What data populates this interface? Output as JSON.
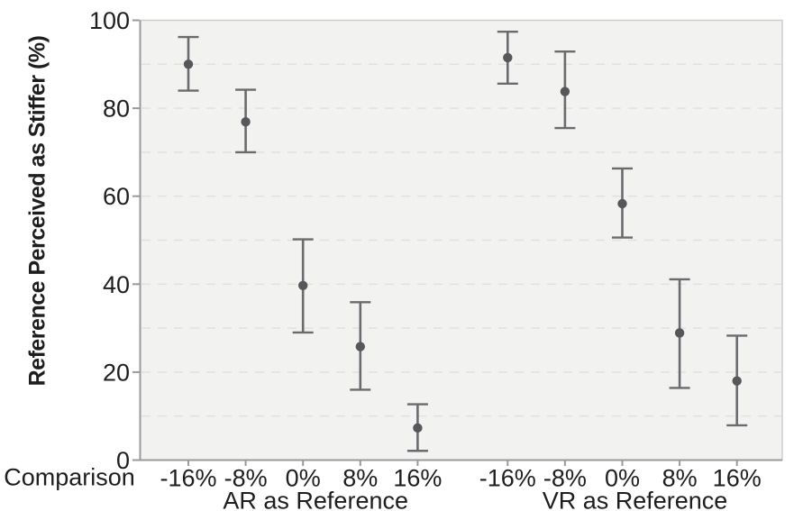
{
  "chart_data": {
    "type": "scatter",
    "title": "",
    "ylabel": "Reference Perceived as Stiffer (%)",
    "xlabel": "Comparison",
    "ylim": [
      0,
      100
    ],
    "yticks": [
      0,
      20,
      40,
      60,
      80,
      100
    ],
    "ytick_labels": [
      "0",
      "20",
      "40",
      "60",
      "80",
      "100"
    ],
    "grid": {
      "step": 10,
      "style": "dashed",
      "visible": true
    },
    "legend": "none",
    "marker": "circle-with-error-bars",
    "categories": [
      "-16%",
      "-8%",
      "0%",
      "8%",
      "16%"
    ],
    "groups": [
      {
        "label": "AR as Reference",
        "points": [
          {
            "category": "-16%",
            "mean": 90.0,
            "ci_low": 84.0,
            "ci_high": 96.2
          },
          {
            "category": "-8%",
            "mean": 76.9,
            "ci_low": 70.0,
            "ci_high": 84.2
          },
          {
            "category": "0%",
            "mean": 39.7,
            "ci_low": 29.0,
            "ci_high": 50.2
          },
          {
            "category": "8%",
            "mean": 25.8,
            "ci_low": 16.0,
            "ci_high": 35.9
          },
          {
            "category": "16%",
            "mean": 7.3,
            "ci_low": 2.1,
            "ci_high": 12.7
          }
        ]
      },
      {
        "label": "VR as Reference",
        "points": [
          {
            "category": "-16%",
            "mean": 91.5,
            "ci_low": 85.6,
            "ci_high": 97.4
          },
          {
            "category": "-8%",
            "mean": 83.8,
            "ci_low": 75.5,
            "ci_high": 92.9
          },
          {
            "category": "0%",
            "mean": 58.3,
            "ci_low": 50.6,
            "ci_high": 66.3
          },
          {
            "category": "8%",
            "mean": 28.9,
            "ci_low": 16.4,
            "ci_high": 41.1
          },
          {
            "category": "16%",
            "mean": 18.0,
            "ci_low": 7.9,
            "ci_high": 28.3
          }
        ]
      }
    ],
    "colors": {
      "marker": "#56575a",
      "error_bar": "#6a6b6e",
      "panel_bg": "#f2f2f1",
      "panel_border": "#cdcdcd",
      "grid_line": "#e0e0de",
      "axis_line": "#9a9a9a",
      "text": "#1e1e1e",
      "page_bg": "#ffffff"
    }
  }
}
